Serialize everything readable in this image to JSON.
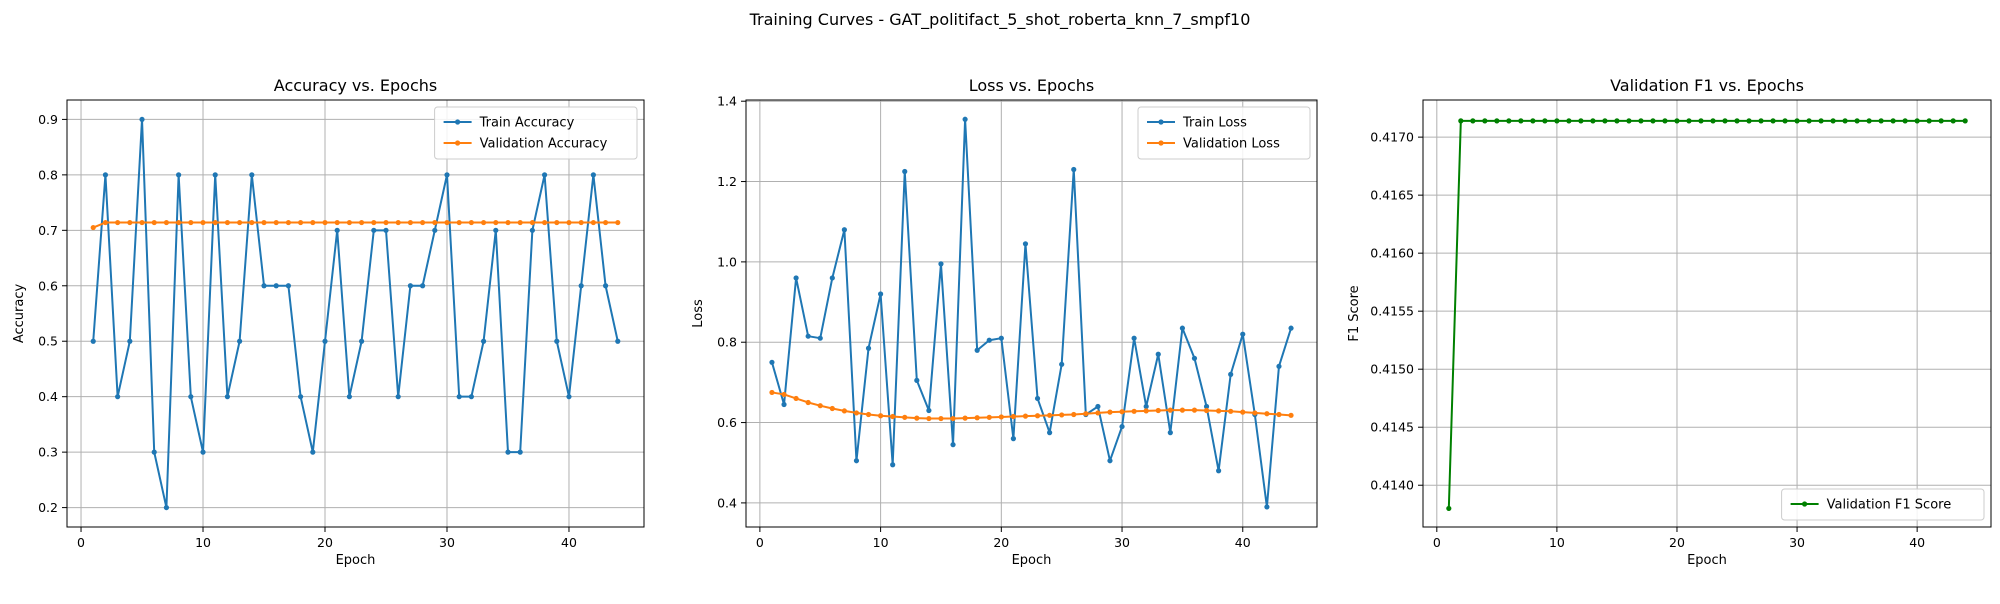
{
  "suptitle": "Training Curves - GAT_politifact_5_shot_roberta_knn_7_smpf10",
  "colors": {
    "train": "#1f77b4",
    "val": "#ff7f0e",
    "f1": "#008000",
    "grid": "#b0b0b0"
  },
  "chart_data": [
    {
      "type": "line",
      "title": "Accuracy vs. Epochs",
      "xlabel": "Epoch",
      "ylabel": "Accuracy",
      "xlim": [
        -1.15,
        46.15
      ],
      "ylim": [
        0.165,
        0.935
      ],
      "xticks": [
        0,
        10,
        20,
        30,
        40
      ],
      "yticks": [
        0.2,
        0.3,
        0.4,
        0.5,
        0.6,
        0.7,
        0.8,
        0.9
      ],
      "tick_decimals": 1,
      "grid": true,
      "legend": "upper right",
      "x": [
        1,
        2,
        3,
        4,
        5,
        6,
        7,
        8,
        9,
        10,
        11,
        12,
        13,
        14,
        15,
        16,
        17,
        18,
        19,
        20,
        21,
        22,
        23,
        24,
        25,
        26,
        27,
        28,
        29,
        30,
        31,
        32,
        33,
        34,
        35,
        36,
        37,
        38,
        39,
        40,
        41,
        42,
        43,
        44
      ],
      "series": [
        {
          "name": "Train Accuracy",
          "color": "#1f77b4",
          "values": [
            0.5,
            0.8,
            0.4,
            0.5,
            0.9,
            0.3,
            0.2,
            0.8,
            0.4,
            0.3,
            0.8,
            0.4,
            0.5,
            0.8,
            0.6,
            0.6,
            0.6,
            0.4,
            0.3,
            0.5,
            0.7,
            0.4,
            0.5,
            0.7,
            0.7,
            0.4,
            0.6,
            0.6,
            0.7,
            0.8,
            0.4,
            0.4,
            0.5,
            0.7,
            0.3,
            0.3,
            0.7,
            0.8,
            0.5,
            0.4,
            0.6,
            0.8,
            0.6,
            0.5
          ]
        },
        {
          "name": "Validation Accuracy",
          "color": "#ff7f0e",
          "values": [
            0.705,
            0.714,
            0.714,
            0.714,
            0.714,
            0.714,
            0.714,
            0.714,
            0.714,
            0.714,
            0.714,
            0.714,
            0.714,
            0.714,
            0.714,
            0.714,
            0.714,
            0.714,
            0.714,
            0.714,
            0.714,
            0.714,
            0.714,
            0.714,
            0.714,
            0.714,
            0.714,
            0.714,
            0.714,
            0.714,
            0.714,
            0.714,
            0.714,
            0.714,
            0.714,
            0.714,
            0.714,
            0.714,
            0.714,
            0.714,
            0.714,
            0.714,
            0.714,
            0.714
          ]
        }
      ]
    },
    {
      "type": "line",
      "title": "Loss vs. Epochs",
      "xlabel": "Epoch",
      "ylabel": "Loss",
      "xlim": [
        -1.15,
        46.15
      ],
      "ylim": [
        0.34,
        1.403
      ],
      "xticks": [
        0,
        10,
        20,
        30,
        40
      ],
      "yticks": [
        0.4,
        0.6,
        0.8,
        1.0,
        1.2,
        1.4
      ],
      "tick_decimals": 1,
      "grid": true,
      "legend": "upper right",
      "x": [
        1,
        2,
        3,
        4,
        5,
        6,
        7,
        8,
        9,
        10,
        11,
        12,
        13,
        14,
        15,
        16,
        17,
        18,
        19,
        20,
        21,
        22,
        23,
        24,
        25,
        26,
        27,
        28,
        29,
        30,
        31,
        32,
        33,
        34,
        35,
        36,
        37,
        38,
        39,
        40,
        41,
        42,
        43,
        44
      ],
      "series": [
        {
          "name": "Train Loss",
          "color": "#1f77b4",
          "values": [
            0.75,
            0.645,
            0.96,
            0.815,
            0.81,
            0.96,
            1.08,
            0.505,
            0.785,
            0.92,
            0.495,
            1.225,
            0.705,
            0.63,
            0.995,
            0.545,
            1.355,
            0.78,
            0.805,
            0.81,
            0.56,
            1.045,
            0.66,
            0.575,
            0.745,
            1.23,
            0.62,
            0.64,
            0.505,
            0.59,
            0.81,
            0.64,
            0.77,
            0.575,
            0.835,
            0.76,
            0.64,
            0.48,
            0.72,
            0.82,
            0.62,
            0.39,
            0.74,
            0.835
          ]
        },
        {
          "name": "Validation Loss",
          "color": "#ff7f0e",
          "values": [
            0.675,
            0.67,
            0.66,
            0.65,
            0.642,
            0.635,
            0.629,
            0.624,
            0.62,
            0.617,
            0.615,
            0.613,
            0.611,
            0.61,
            0.61,
            0.61,
            0.611,
            0.612,
            0.613,
            0.614,
            0.615,
            0.616,
            0.617,
            0.618,
            0.619,
            0.62,
            0.622,
            0.624,
            0.626,
            0.627,
            0.628,
            0.629,
            0.63,
            0.631,
            0.631,
            0.631,
            0.63,
            0.629,
            0.628,
            0.626,
            0.624,
            0.622,
            0.62,
            0.618
          ]
        }
      ]
    },
    {
      "type": "line",
      "title": "Validation F1 vs. Epochs",
      "xlabel": "Epoch",
      "ylabel": "F1 Score",
      "xlim": [
        -1.15,
        46.15
      ],
      "ylim": [
        0.41364,
        0.41732
      ],
      "xticks": [
        0,
        10,
        20,
        30,
        40
      ],
      "yticks": [
        0.414,
        0.4145,
        0.415,
        0.4155,
        0.416,
        0.4165,
        0.417
      ],
      "tick_decimals": 4,
      "grid": true,
      "legend": "lower right",
      "x": [
        1,
        2,
        3,
        4,
        5,
        6,
        7,
        8,
        9,
        10,
        11,
        12,
        13,
        14,
        15,
        16,
        17,
        18,
        19,
        20,
        21,
        22,
        23,
        24,
        25,
        26,
        27,
        28,
        29,
        30,
        31,
        32,
        33,
        34,
        35,
        36,
        37,
        38,
        39,
        40,
        41,
        42,
        43,
        44
      ],
      "series": [
        {
          "name": "Validation F1 Score",
          "color": "#008000",
          "values": [
            0.4138,
            0.41714,
            0.41714,
            0.41714,
            0.41714,
            0.41714,
            0.41714,
            0.41714,
            0.41714,
            0.41714,
            0.41714,
            0.41714,
            0.41714,
            0.41714,
            0.41714,
            0.41714,
            0.41714,
            0.41714,
            0.41714,
            0.41714,
            0.41714,
            0.41714,
            0.41714,
            0.41714,
            0.41714,
            0.41714,
            0.41714,
            0.41714,
            0.41714,
            0.41714,
            0.41714,
            0.41714,
            0.41714,
            0.41714,
            0.41714,
            0.41714,
            0.41714,
            0.41714,
            0.41714,
            0.41714,
            0.41714,
            0.41714,
            0.41714,
            0.41714
          ]
        }
      ]
    }
  ]
}
